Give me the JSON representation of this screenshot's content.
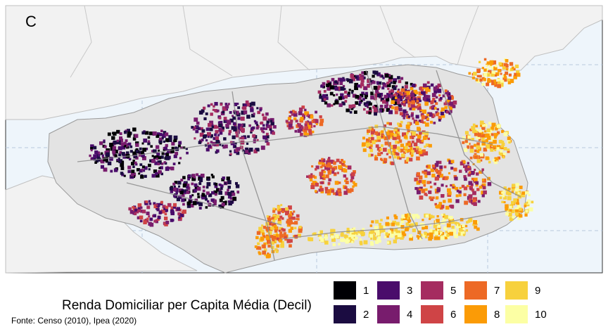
{
  "panel_letter": "C",
  "legend": {
    "title": "Renda Domiciliar per Capita Média (Decil)",
    "items": [
      {
        "label": "1",
        "color": "#000004"
      },
      {
        "label": "2",
        "color": "#1b0c41"
      },
      {
        "label": "3",
        "color": "#4a0c6b"
      },
      {
        "label": "4",
        "color": "#781c6d"
      },
      {
        "label": "5",
        "color": "#a52c60"
      },
      {
        "label": "6",
        "color": "#cf4446"
      },
      {
        "label": "7",
        "color": "#ed6925"
      },
      {
        "label": "8",
        "color": "#fb9b06"
      },
      {
        "label": "9",
        "color": "#f7d13d"
      },
      {
        "label": "10",
        "color": "#fcffa4"
      }
    ]
  },
  "source": "Fonte: Censo (2010), Ipea (2020)",
  "colors": {
    "ocean": "#eef5fb",
    "land": "#f2f2f2",
    "city": "#e3e3e3",
    "roads": "#8c8c8c",
    "grid": "#b8c9dc"
  }
}
